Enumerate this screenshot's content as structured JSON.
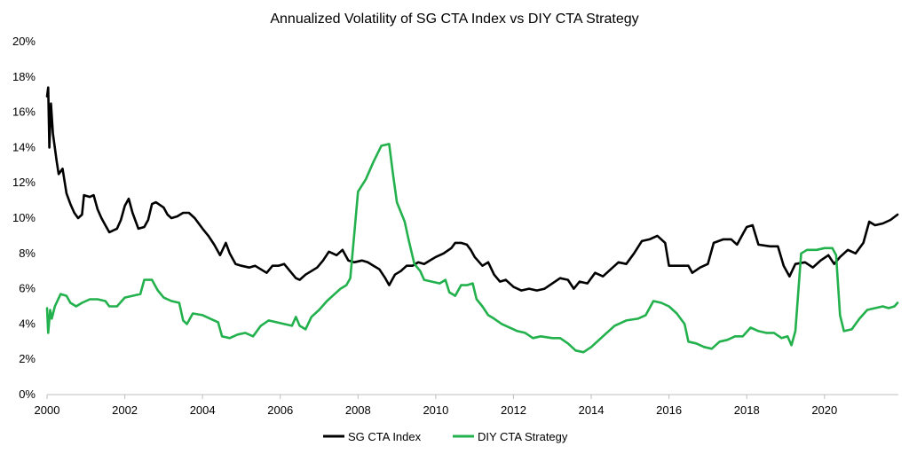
{
  "chart_data": {
    "type": "line",
    "title": "Annualized Volatility of SG CTA Index vs DIY CTA Strategy",
    "xlabel": "",
    "ylabel": "",
    "xlim": [
      2000,
      2021.9
    ],
    "ylim": [
      0,
      20
    ],
    "x_ticks": [
      2000,
      2002,
      2004,
      2006,
      2008,
      2010,
      2012,
      2014,
      2016,
      2018,
      2020
    ],
    "x_tick_labels": [
      "2000",
      "2002",
      "2004",
      "2006",
      "2008",
      "2010",
      "2012",
      "2014",
      "2016",
      "2018",
      "2020"
    ],
    "y_ticks": [
      0,
      2,
      4,
      6,
      8,
      10,
      12,
      14,
      16,
      18,
      20
    ],
    "y_tick_labels": [
      "0%",
      "2%",
      "4%",
      "6%",
      "8%",
      "10%",
      "12%",
      "14%",
      "16%",
      "18%",
      "20%"
    ],
    "grid": false,
    "legend_position": "bottom-center",
    "series": [
      {
        "name": "SG CTA Index",
        "color": "#000000",
        "points": [
          [
            2000.0,
            16.9
          ],
          [
            2000.03,
            17.4
          ],
          [
            2000.06,
            14.0
          ],
          [
            2000.1,
            16.5
          ],
          [
            2000.15,
            14.8
          ],
          [
            2000.25,
            13.2
          ],
          [
            2000.3,
            12.5
          ],
          [
            2000.4,
            12.8
          ],
          [
            2000.5,
            11.4
          ],
          [
            2000.6,
            10.8
          ],
          [
            2000.7,
            10.3
          ],
          [
            2000.8,
            10.0
          ],
          [
            2000.9,
            10.2
          ],
          [
            2000.95,
            11.3
          ],
          [
            2001.1,
            11.2
          ],
          [
            2001.2,
            11.3
          ],
          [
            2001.3,
            10.5
          ],
          [
            2001.4,
            10.0
          ],
          [
            2001.5,
            9.6
          ],
          [
            2001.6,
            9.2
          ],
          [
            2001.8,
            9.4
          ],
          [
            2001.9,
            9.9
          ],
          [
            2002.0,
            10.7
          ],
          [
            2002.1,
            11.1
          ],
          [
            2002.2,
            10.3
          ],
          [
            2002.35,
            9.4
          ],
          [
            2002.5,
            9.5
          ],
          [
            2002.6,
            9.9
          ],
          [
            2002.7,
            10.8
          ],
          [
            2002.8,
            10.9
          ],
          [
            2003.0,
            10.6
          ],
          [
            2003.1,
            10.2
          ],
          [
            2003.2,
            10.0
          ],
          [
            2003.35,
            10.1
          ],
          [
            2003.5,
            10.3
          ],
          [
            2003.65,
            10.3
          ],
          [
            2003.8,
            10.0
          ],
          [
            2004.0,
            9.4
          ],
          [
            2004.15,
            9.0
          ],
          [
            2004.3,
            8.5
          ],
          [
            2004.45,
            7.9
          ],
          [
            2004.6,
            8.6
          ],
          [
            2004.7,
            8.0
          ],
          [
            2004.85,
            7.4
          ],
          [
            2005.0,
            7.3
          ],
          [
            2005.2,
            7.2
          ],
          [
            2005.35,
            7.3
          ],
          [
            2005.5,
            7.1
          ],
          [
            2005.65,
            6.9
          ],
          [
            2005.8,
            7.3
          ],
          [
            2005.95,
            7.3
          ],
          [
            2006.1,
            7.4
          ],
          [
            2006.25,
            7.0
          ],
          [
            2006.4,
            6.6
          ],
          [
            2006.5,
            6.5
          ],
          [
            2006.65,
            6.8
          ],
          [
            2006.8,
            7.0
          ],
          [
            2006.95,
            7.2
          ],
          [
            2007.1,
            7.6
          ],
          [
            2007.25,
            8.1
          ],
          [
            2007.45,
            7.9
          ],
          [
            2007.6,
            8.2
          ],
          [
            2007.75,
            7.6
          ],
          [
            2007.9,
            7.5
          ],
          [
            2008.1,
            7.6
          ],
          [
            2008.25,
            7.5
          ],
          [
            2008.4,
            7.3
          ],
          [
            2008.55,
            7.1
          ],
          [
            2008.7,
            6.6
          ],
          [
            2008.8,
            6.2
          ],
          [
            2008.95,
            6.8
          ],
          [
            2009.1,
            7.0
          ],
          [
            2009.25,
            7.3
          ],
          [
            2009.4,
            7.3
          ],
          [
            2009.55,
            7.5
          ],
          [
            2009.7,
            7.4
          ],
          [
            2009.85,
            7.6
          ],
          [
            2010.0,
            7.8
          ],
          [
            2010.2,
            8.0
          ],
          [
            2010.4,
            8.3
          ],
          [
            2010.5,
            8.6
          ],
          [
            2010.65,
            8.6
          ],
          [
            2010.8,
            8.5
          ],
          [
            2010.9,
            8.2
          ],
          [
            2011.0,
            7.8
          ],
          [
            2011.2,
            7.3
          ],
          [
            2011.35,
            7.5
          ],
          [
            2011.5,
            6.8
          ],
          [
            2011.65,
            6.4
          ],
          [
            2011.8,
            6.5
          ],
          [
            2012.0,
            6.1
          ],
          [
            2012.2,
            5.9
          ],
          [
            2012.4,
            6.0
          ],
          [
            2012.6,
            5.9
          ],
          [
            2012.8,
            6.0
          ],
          [
            2013.0,
            6.3
          ],
          [
            2013.2,
            6.6
          ],
          [
            2013.4,
            6.5
          ],
          [
            2013.55,
            6.0
          ],
          [
            2013.7,
            6.4
          ],
          [
            2013.9,
            6.3
          ],
          [
            2014.1,
            6.9
          ],
          [
            2014.3,
            6.7
          ],
          [
            2014.5,
            7.1
          ],
          [
            2014.7,
            7.5
          ],
          [
            2014.9,
            7.4
          ],
          [
            2015.1,
            8.0
          ],
          [
            2015.3,
            8.7
          ],
          [
            2015.5,
            8.8
          ],
          [
            2015.7,
            9.0
          ],
          [
            2015.9,
            8.6
          ],
          [
            2016.0,
            7.3
          ],
          [
            2016.3,
            7.3
          ],
          [
            2016.5,
            7.3
          ],
          [
            2016.6,
            6.9
          ],
          [
            2016.8,
            7.2
          ],
          [
            2017.0,
            7.4
          ],
          [
            2017.15,
            8.6
          ],
          [
            2017.4,
            8.8
          ],
          [
            2017.6,
            8.8
          ],
          [
            2017.75,
            8.5
          ],
          [
            2017.9,
            9.1
          ],
          [
            2018.0,
            9.5
          ],
          [
            2018.15,
            9.6
          ],
          [
            2018.3,
            8.5
          ],
          [
            2018.6,
            8.4
          ],
          [
            2018.8,
            8.4
          ],
          [
            2018.95,
            7.3
          ],
          [
            2019.1,
            6.7
          ],
          [
            2019.25,
            7.4
          ],
          [
            2019.5,
            7.5
          ],
          [
            2019.7,
            7.2
          ],
          [
            2019.9,
            7.6
          ],
          [
            2020.1,
            7.9
          ],
          [
            2020.25,
            7.4
          ],
          [
            2020.4,
            7.8
          ],
          [
            2020.6,
            8.2
          ],
          [
            2020.8,
            8.0
          ],
          [
            2021.0,
            8.6
          ],
          [
            2021.15,
            9.8
          ],
          [
            2021.3,
            9.6
          ],
          [
            2021.5,
            9.7
          ],
          [
            2021.7,
            9.9
          ],
          [
            2021.88,
            10.2
          ]
        ]
      },
      {
        "name": "DIY CTA Strategy",
        "color": "#22b14c",
        "points": [
          [
            2000.0,
            4.9
          ],
          [
            2000.03,
            3.5
          ],
          [
            2000.08,
            4.8
          ],
          [
            2000.12,
            4.3
          ],
          [
            2000.2,
            5.0
          ],
          [
            2000.35,
            5.7
          ],
          [
            2000.5,
            5.6
          ],
          [
            2000.6,
            5.2
          ],
          [
            2000.75,
            5.0
          ],
          [
            2000.9,
            5.2
          ],
          [
            2001.1,
            5.4
          ],
          [
            2001.3,
            5.4
          ],
          [
            2001.5,
            5.3
          ],
          [
            2001.6,
            5.0
          ],
          [
            2001.8,
            5.0
          ],
          [
            2002.0,
            5.5
          ],
          [
            2002.2,
            5.6
          ],
          [
            2002.4,
            5.7
          ],
          [
            2002.5,
            6.5
          ],
          [
            2002.7,
            6.5
          ],
          [
            2002.85,
            5.9
          ],
          [
            2003.0,
            5.5
          ],
          [
            2003.2,
            5.3
          ],
          [
            2003.4,
            5.2
          ],
          [
            2003.5,
            4.2
          ],
          [
            2003.6,
            4.0
          ],
          [
            2003.75,
            4.6
          ],
          [
            2004.0,
            4.5
          ],
          [
            2004.2,
            4.3
          ],
          [
            2004.4,
            4.1
          ],
          [
            2004.5,
            3.3
          ],
          [
            2004.7,
            3.2
          ],
          [
            2004.9,
            3.4
          ],
          [
            2005.1,
            3.5
          ],
          [
            2005.3,
            3.3
          ],
          [
            2005.5,
            3.9
          ],
          [
            2005.7,
            4.2
          ],
          [
            2005.9,
            4.1
          ],
          [
            2006.1,
            4.0
          ],
          [
            2006.3,
            3.9
          ],
          [
            2006.4,
            4.4
          ],
          [
            2006.5,
            3.9
          ],
          [
            2006.65,
            3.7
          ],
          [
            2006.8,
            4.4
          ],
          [
            2007.0,
            4.8
          ],
          [
            2007.2,
            5.3
          ],
          [
            2007.4,
            5.7
          ],
          [
            2007.55,
            6.0
          ],
          [
            2007.7,
            6.2
          ],
          [
            2007.8,
            6.6
          ],
          [
            2007.92,
            9.5
          ],
          [
            2008.0,
            11.5
          ],
          [
            2008.2,
            12.2
          ],
          [
            2008.4,
            13.2
          ],
          [
            2008.6,
            14.1
          ],
          [
            2008.8,
            14.2
          ],
          [
            2008.9,
            12.5
          ],
          [
            2009.0,
            10.9
          ],
          [
            2009.2,
            9.8
          ],
          [
            2009.3,
            8.8
          ],
          [
            2009.45,
            7.4
          ],
          [
            2009.6,
            7.0
          ],
          [
            2009.7,
            6.5
          ],
          [
            2009.9,
            6.4
          ],
          [
            2010.1,
            6.3
          ],
          [
            2010.25,
            6.5
          ],
          [
            2010.35,
            5.8
          ],
          [
            2010.5,
            5.6
          ],
          [
            2010.65,
            6.2
          ],
          [
            2010.8,
            6.2
          ],
          [
            2010.95,
            6.3
          ],
          [
            2011.05,
            5.4
          ],
          [
            2011.2,
            5.0
          ],
          [
            2011.35,
            4.5
          ],
          [
            2011.5,
            4.3
          ],
          [
            2011.7,
            4.0
          ],
          [
            2011.9,
            3.8
          ],
          [
            2012.1,
            3.6
          ],
          [
            2012.3,
            3.5
          ],
          [
            2012.5,
            3.2
          ],
          [
            2012.7,
            3.3
          ],
          [
            2013.0,
            3.2
          ],
          [
            2013.2,
            3.2
          ],
          [
            2013.4,
            2.9
          ],
          [
            2013.6,
            2.5
          ],
          [
            2013.8,
            2.4
          ],
          [
            2014.0,
            2.7
          ],
          [
            2014.3,
            3.3
          ],
          [
            2014.6,
            3.9
          ],
          [
            2014.9,
            4.2
          ],
          [
            2015.2,
            4.3
          ],
          [
            2015.4,
            4.5
          ],
          [
            2015.6,
            5.3
          ],
          [
            2015.8,
            5.2
          ],
          [
            2016.0,
            5.0
          ],
          [
            2016.2,
            4.6
          ],
          [
            2016.4,
            4.0
          ],
          [
            2016.5,
            3.0
          ],
          [
            2016.7,
            2.9
          ],
          [
            2016.9,
            2.7
          ],
          [
            2017.1,
            2.6
          ],
          [
            2017.3,
            3.0
          ],
          [
            2017.5,
            3.1
          ],
          [
            2017.7,
            3.3
          ],
          [
            2017.9,
            3.3
          ],
          [
            2018.1,
            3.8
          ],
          [
            2018.3,
            3.6
          ],
          [
            2018.5,
            3.5
          ],
          [
            2018.7,
            3.5
          ],
          [
            2018.9,
            3.2
          ],
          [
            2019.05,
            3.3
          ],
          [
            2019.15,
            2.8
          ],
          [
            2019.25,
            3.6
          ],
          [
            2019.4,
            8.0
          ],
          [
            2019.55,
            8.2
          ],
          [
            2019.8,
            8.2
          ],
          [
            2020.0,
            8.3
          ],
          [
            2020.2,
            8.3
          ],
          [
            2020.3,
            7.9
          ],
          [
            2020.4,
            4.5
          ],
          [
            2020.5,
            3.6
          ],
          [
            2020.7,
            3.7
          ],
          [
            2020.9,
            4.3
          ],
          [
            2021.1,
            4.8
          ],
          [
            2021.3,
            4.9
          ],
          [
            2021.5,
            5.0
          ],
          [
            2021.65,
            4.9
          ],
          [
            2021.8,
            5.0
          ],
          [
            2021.88,
            5.2
          ]
        ]
      }
    ]
  }
}
